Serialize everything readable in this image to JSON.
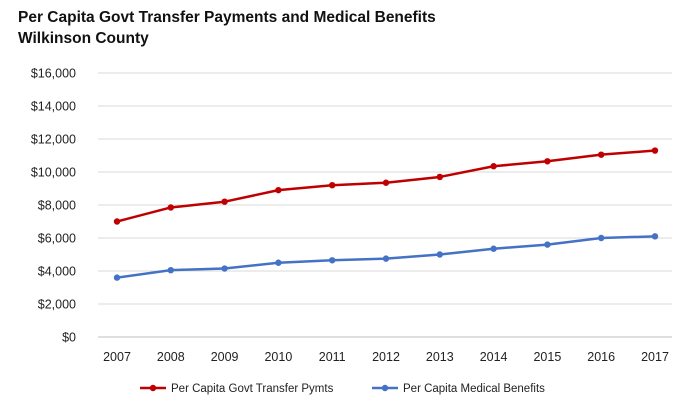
{
  "chart_data": {
    "type": "line",
    "title": [
      "Per Capita Govt Transfer Payments and Medical Benefits",
      "Wilkinson County"
    ],
    "xlabel": "",
    "ylabel": "",
    "x": [
      "2007",
      "2008",
      "2009",
      "2010",
      "2011",
      "2012",
      "2013",
      "2014",
      "2015",
      "2016",
      "2017"
    ],
    "ylim": [
      0,
      16000
    ],
    "yticks": [
      0,
      2000,
      4000,
      6000,
      8000,
      10000,
      12000,
      14000,
      16000
    ],
    "ytick_labels": [
      "$0",
      "$2,000",
      "$4,000",
      "$6,000",
      "$8,000",
      "$10,000",
      "$12,000",
      "$14,000",
      "$16,000"
    ],
    "grid": true,
    "legend_position": "bottom",
    "series": [
      {
        "name": "Per Capita Govt Transfer Pymts",
        "color": "#c00000",
        "values": [
          7000,
          7850,
          8200,
          8900,
          9200,
          9350,
          9700,
          10350,
          10650,
          11050,
          11300
        ]
      },
      {
        "name": "Per Capita Medical Benefits",
        "color": "#4472c4",
        "values": [
          3600,
          4050,
          4150,
          4500,
          4650,
          4750,
          5000,
          5350,
          5600,
          6000,
          6100
        ]
      }
    ]
  }
}
